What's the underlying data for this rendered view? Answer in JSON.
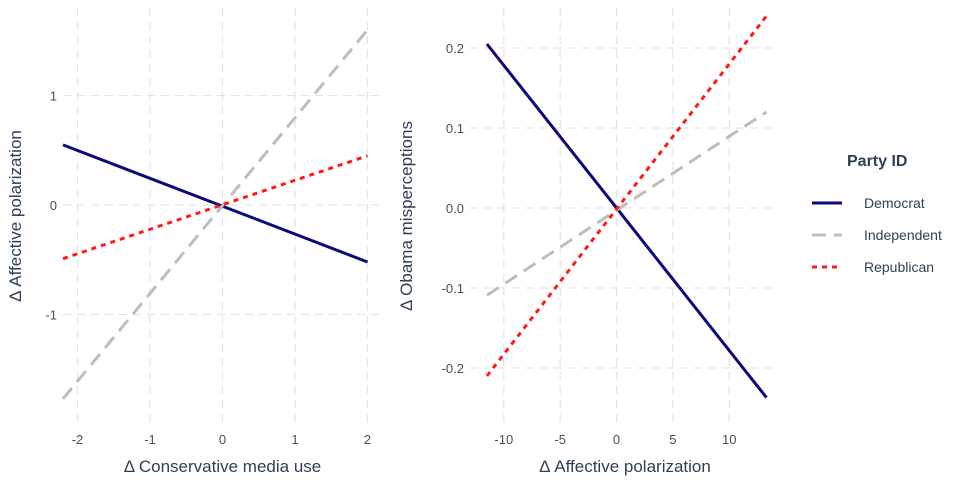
{
  "legend": {
    "title": "Party ID",
    "placement": "right",
    "entries": [
      {
        "label": "Democrat",
        "color": "#0a0a7a",
        "dash": "solid"
      },
      {
        "label": "Independent",
        "color": "#bdbdbd",
        "dash": "dashed"
      },
      {
        "label": "Republican",
        "color": "#ff1a1a",
        "dash": "dotted"
      }
    ]
  },
  "chart_data": [
    {
      "type": "line",
      "title": "",
      "xlabel": "Δ Conservative media use",
      "ylabel": "Δ Affective polarization",
      "xlim": [
        -2.2,
        2.2
      ],
      "ylim": [
        -2.0,
        1.8
      ],
      "xticks": [
        -2,
        -1,
        0,
        1,
        2
      ],
      "xtick_labels": [
        "-2",
        "-1",
        "0",
        "1",
        "2"
      ],
      "yticks": [
        -1,
        0,
        1
      ],
      "ytick_labels": [
        "-1",
        "0",
        "1"
      ],
      "grid": true,
      "series": [
        {
          "name": "Democrat",
          "x": [
            -2.2,
            2.0
          ],
          "y": [
            0.55,
            -0.52
          ]
        },
        {
          "name": "Independent",
          "x": [
            -2.2,
            2.0
          ],
          "y": [
            -1.77,
            1.6
          ]
        },
        {
          "name": "Republican",
          "x": [
            -2.2,
            2.0
          ],
          "y": [
            -0.49,
            0.45
          ]
        }
      ]
    },
    {
      "type": "line",
      "title": "",
      "xlabel": "Δ Affective polarization",
      "ylabel": "Δ Obama misperceptions",
      "xlim": [
        -13,
        14.5
      ],
      "ylim": [
        -0.27,
        0.25
      ],
      "xticks": [
        -10,
        -5,
        0,
        5,
        10
      ],
      "xtick_labels": [
        "-10",
        "-5",
        "0",
        "5",
        "10"
      ],
      "yticks": [
        -0.2,
        -0.1,
        0.0,
        0.1,
        0.2
      ],
      "ytick_labels": [
        "-0.2",
        "-0.1",
        "0.0",
        "0.1",
        "0.2"
      ],
      "grid": true,
      "series": [
        {
          "name": "Democrat",
          "x": [
            -11.5,
            13.3
          ],
          "y": [
            0.205,
            -0.237
          ]
        },
        {
          "name": "Independent",
          "x": [
            -11.5,
            13.3
          ],
          "y": [
            -0.109,
            0.12
          ]
        },
        {
          "name": "Republican",
          "x": [
            -11.5,
            13.3
          ],
          "y": [
            -0.21,
            0.24
          ]
        }
      ]
    }
  ]
}
